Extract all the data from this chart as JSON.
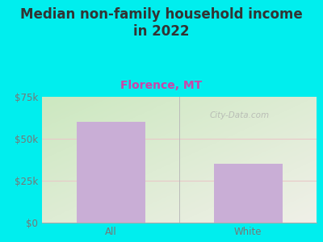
{
  "title": "Median non-family household income\nin 2022",
  "subtitle": "Florence, MT",
  "categories": [
    "All",
    "White"
  ],
  "values": [
    60000,
    35000
  ],
  "bar_color": "#c9aed6",
  "title_color": "#333333",
  "subtitle_color": "#cc44aa",
  "axis_label_color": "#777777",
  "background_color": "#00eeee",
  "plot_bg_top_left": "#cce8c0",
  "plot_bg_bottom_right": "#f0f0e8",
  "ylim": [
    0,
    75000
  ],
  "yticks": [
    0,
    25000,
    50000,
    75000
  ],
  "ytick_labels": [
    "$0",
    "$25k",
    "$50k",
    "$75k"
  ],
  "gridline_color": "#e8c8c8",
  "separator_color": "#bbbbbb",
  "watermark": "City-Data.com",
  "title_fontsize": 12,
  "subtitle_fontsize": 10,
  "tick_fontsize": 8.5,
  "bar_width": 0.5
}
